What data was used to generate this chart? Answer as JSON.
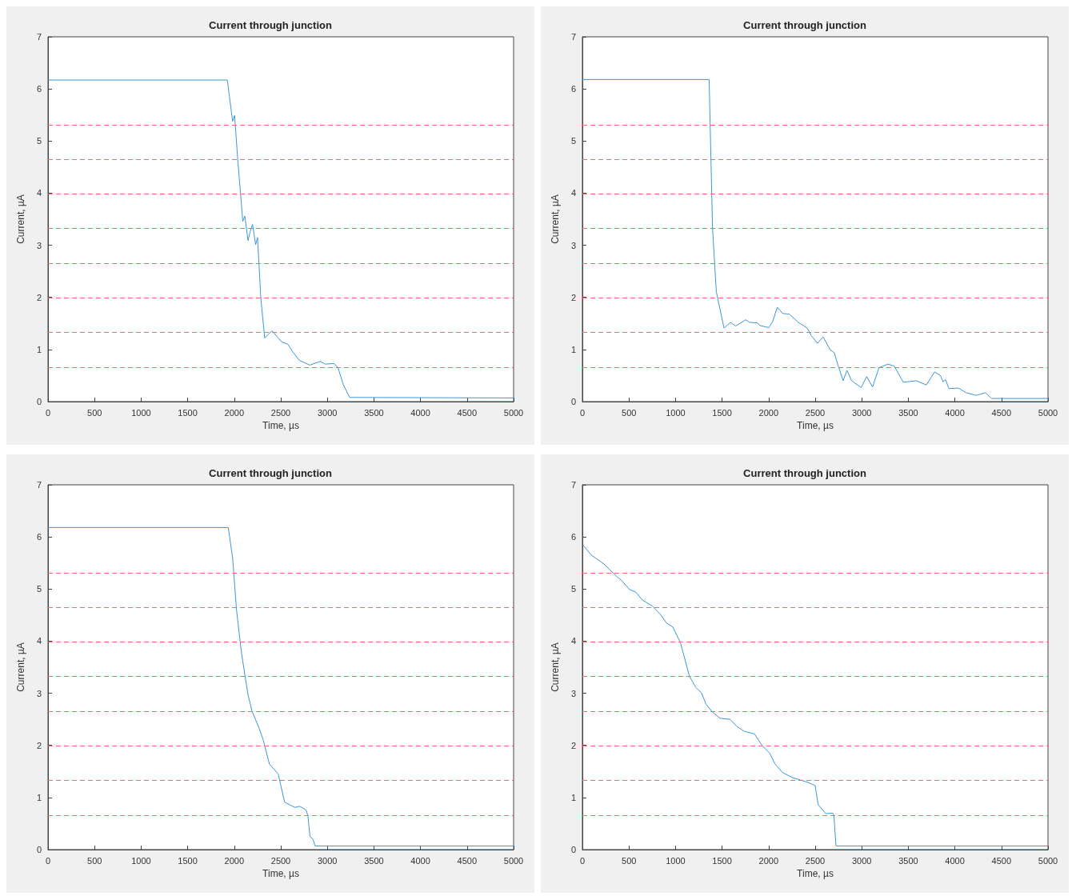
{
  "chart_data": [
    {
      "type": "line",
      "title": "Current through junction",
      "xlabel": "Time, µs",
      "ylabel": "Current, µA",
      "xlim": [
        0,
        5000
      ],
      "ylim": [
        0,
        7
      ],
      "xticks": [
        0,
        500,
        1000,
        1500,
        2000,
        2500,
        3000,
        3500,
        4000,
        4500,
        5000
      ],
      "yticks": [
        0,
        1,
        2,
        3,
        4,
        5,
        6,
        7
      ],
      "grid": false,
      "line_style": "solid",
      "series": [
        {
          "color": "#3d95d8",
          "x": [
            0,
            1926,
            1982,
            2004,
            2037,
            2092,
            2114,
            2148,
            2170,
            2197,
            2230,
            2250,
            2286,
            2327,
            2405,
            2507,
            2577,
            2618,
            2700,
            2811,
            2922,
            2977,
            3073,
            3115,
            3170,
            3240,
            5000
          ],
          "values": [
            6.17,
            6.17,
            5.38,
            5.49,
            4.66,
            3.46,
            3.56,
            3.09,
            3.26,
            3.4,
            3.01,
            3.15,
            1.97,
            1.22,
            1.36,
            1.15,
            1.1,
            0.98,
            0.79,
            0.7,
            0.77,
            0.72,
            0.73,
            0.65,
            0.33,
            0.08,
            0.07
          ]
        }
      ],
      "ref_lines": [
        {
          "axis": "y",
          "value": 0.66,
          "color": "#ff6666",
          "line_style": "dashed"
        },
        {
          "axis": "y",
          "value": 1.33,
          "color": "#ff6666",
          "line_style": "dashed"
        },
        {
          "axis": "y",
          "value": 1.99,
          "color": "#ff6666",
          "line_style": "dashed"
        },
        {
          "axis": "y",
          "value": 2.65,
          "color": "#ff6666",
          "line_style": "dashed"
        },
        {
          "axis": "y",
          "value": 3.32,
          "color": "#ff6666",
          "line_style": "dashed"
        },
        {
          "axis": "y",
          "value": 3.98,
          "color": "#ff6666",
          "line_style": "dashed"
        },
        {
          "axis": "y",
          "value": 4.64,
          "color": "#ff6666",
          "line_style": "dashed"
        },
        {
          "axis": "y",
          "value": 5.31,
          "color": "#ff6666",
          "line_style": "dashed"
        }
      ]
    },
    {
      "type": "line",
      "title": "Current through junction",
      "xlabel": "Time, µs",
      "ylabel": "Current, µA",
      "xlim": [
        0,
        5000
      ],
      "ylim": [
        0,
        7
      ],
      "xticks": [
        0,
        500,
        1000,
        1500,
        2000,
        2500,
        3000,
        3500,
        4000,
        4500,
        5000
      ],
      "yticks": [
        0,
        1,
        2,
        3,
        4,
        5,
        6,
        7
      ],
      "grid": false,
      "line_style": "solid",
      "series": [
        {
          "color": "#3d95d8",
          "x": [
            0,
            1361,
            1397,
            1438,
            1521,
            1590,
            1645,
            1755,
            1796,
            1878,
            1906,
            2002,
            2044,
            2093,
            2153,
            2222,
            2318,
            2415,
            2456,
            2525,
            2585,
            2663,
            2704,
            2745,
            2800,
            2841,
            2891,
            2993,
            3053,
            3116,
            3185,
            3281,
            3350,
            3446,
            3584,
            3694,
            3782,
            3845,
            3873,
            3900,
            3936,
            4038,
            4120,
            4230,
            4326,
            4395,
            5000
          ],
          "values": [
            6.18,
            6.18,
            3.35,
            2.11,
            1.41,
            1.52,
            1.45,
            1.57,
            1.52,
            1.51,
            1.46,
            1.42,
            1.54,
            1.81,
            1.69,
            1.68,
            1.52,
            1.41,
            1.27,
            1.12,
            1.24,
            0.99,
            0.94,
            0.7,
            0.4,
            0.6,
            0.4,
            0.27,
            0.48,
            0.28,
            0.65,
            0.72,
            0.68,
            0.37,
            0.4,
            0.32,
            0.57,
            0.5,
            0.38,
            0.42,
            0.25,
            0.26,
            0.17,
            0.12,
            0.17,
            0.06,
            0.06
          ]
        }
      ],
      "ref_lines": [
        {
          "axis": "y",
          "value": 0.66,
          "color": "#ff6666",
          "line_style": "dashed"
        },
        {
          "axis": "y",
          "value": 1.33,
          "color": "#ff6666",
          "line_style": "dashed"
        },
        {
          "axis": "y",
          "value": 1.99,
          "color": "#ff6666",
          "line_style": "dashed"
        },
        {
          "axis": "y",
          "value": 2.65,
          "color": "#ff6666",
          "line_style": "dashed"
        },
        {
          "axis": "y",
          "value": 3.32,
          "color": "#ff6666",
          "line_style": "dashed"
        },
        {
          "axis": "y",
          "value": 3.98,
          "color": "#ff6666",
          "line_style": "dashed"
        },
        {
          "axis": "y",
          "value": 4.64,
          "color": "#ff6666",
          "line_style": "dashed"
        },
        {
          "axis": "y",
          "value": 5.31,
          "color": "#ff6666",
          "line_style": "dashed"
        }
      ]
    },
    {
      "type": "line",
      "title": "Current through junction",
      "xlabel": "Time, µs",
      "ylabel": "Current, µA",
      "xlim": [
        0,
        5000
      ],
      "ylim": [
        0,
        7
      ],
      "xticks": [
        0,
        500,
        1000,
        1500,
        2000,
        2500,
        3000,
        3500,
        4000,
        4500,
        5000
      ],
      "yticks": [
        0,
        1,
        2,
        3,
        4,
        5,
        6,
        7
      ],
      "grid": false,
      "line_style": "solid",
      "series": [
        {
          "color": "#3d95d8",
          "x": [
            0,
            1936,
            1983,
            2024,
            2078,
            2146,
            2192,
            2263,
            2310,
            2378,
            2473,
            2500,
            2541,
            2650,
            2704,
            2772,
            2792,
            2813,
            2846,
            2868,
            5000
          ],
          "values": [
            6.18,
            6.18,
            5.59,
            4.61,
            3.77,
            2.99,
            2.65,
            2.35,
            2.11,
            1.64,
            1.45,
            1.23,
            0.91,
            0.81,
            0.83,
            0.76,
            0.64,
            0.25,
            0.2,
            0.07,
            0.07
          ]
        }
      ],
      "ref_lines": [
        {
          "axis": "y",
          "value": 0.66,
          "color": "#ff6666",
          "line_style": "dashed"
        },
        {
          "axis": "y",
          "value": 1.33,
          "color": "#ff6666",
          "line_style": "dashed"
        },
        {
          "axis": "y",
          "value": 1.99,
          "color": "#ff6666",
          "line_style": "dashed"
        },
        {
          "axis": "y",
          "value": 2.65,
          "color": "#ff6666",
          "line_style": "dashed"
        },
        {
          "axis": "y",
          "value": 3.32,
          "color": "#ff6666",
          "line_style": "dashed"
        },
        {
          "axis": "y",
          "value": 3.98,
          "color": "#ff6666",
          "line_style": "dashed"
        },
        {
          "axis": "y",
          "value": 4.64,
          "color": "#ff6666",
          "line_style": "dashed"
        },
        {
          "axis": "y",
          "value": 5.31,
          "color": "#ff6666",
          "line_style": "dashed"
        }
      ]
    },
    {
      "type": "line",
      "title": "Current through junction",
      "xlabel": "Time, µs",
      "ylabel": "Current, µA",
      "xlim": [
        0,
        5000
      ],
      "ylim": [
        0,
        7
      ],
      "xticks": [
        0,
        500,
        1000,
        1500,
        2000,
        2500,
        3000,
        3500,
        4000,
        4500,
        5000
      ],
      "yticks": [
        0,
        1,
        2,
        3,
        4,
        5,
        6,
        7
      ],
      "grid": false,
      "line_style": "solid",
      "series": [
        {
          "color": "#3d95d8",
          "x": [
            8,
            96,
            232,
            369,
            424,
            506,
            575,
            643,
            753,
            835,
            903,
            971,
            1053,
            1149,
            1218,
            1278,
            1327,
            1396,
            1478,
            1587,
            1656,
            1738,
            1847,
            1929,
            2011,
            2066,
            2148,
            2258,
            2422,
            2499,
            2532,
            2614,
            2690,
            2701,
            2723,
            5000
          ],
          "values": [
            5.84,
            5.65,
            5.48,
            5.24,
            5.16,
            4.99,
            4.94,
            4.79,
            4.67,
            4.52,
            4.35,
            4.27,
            3.97,
            3.33,
            3.11,
            3.01,
            2.79,
            2.64,
            2.52,
            2.5,
            2.37,
            2.27,
            2.22,
            2.0,
            1.85,
            1.65,
            1.48,
            1.38,
            1.29,
            1.23,
            0.86,
            0.69,
            0.7,
            0.66,
            0.07,
            0.07
          ]
        }
      ],
      "ref_lines": [
        {
          "axis": "y",
          "value": 0.66,
          "color": "#ff6666",
          "line_style": "dashed"
        },
        {
          "axis": "y",
          "value": 1.33,
          "color": "#ff6666",
          "line_style": "dashed"
        },
        {
          "axis": "y",
          "value": 1.99,
          "color": "#ff6666",
          "line_style": "dashed"
        },
        {
          "axis": "y",
          "value": 2.65,
          "color": "#ff6666",
          "line_style": "dashed"
        },
        {
          "axis": "y",
          "value": 3.32,
          "color": "#ff6666",
          "line_style": "dashed"
        },
        {
          "axis": "y",
          "value": 3.98,
          "color": "#ff6666",
          "line_style": "dashed"
        },
        {
          "axis": "y",
          "value": 4.64,
          "color": "#ff6666",
          "line_style": "dashed"
        },
        {
          "axis": "y",
          "value": 5.31,
          "color": "#ff6666",
          "line_style": "dashed"
        }
      ]
    }
  ]
}
